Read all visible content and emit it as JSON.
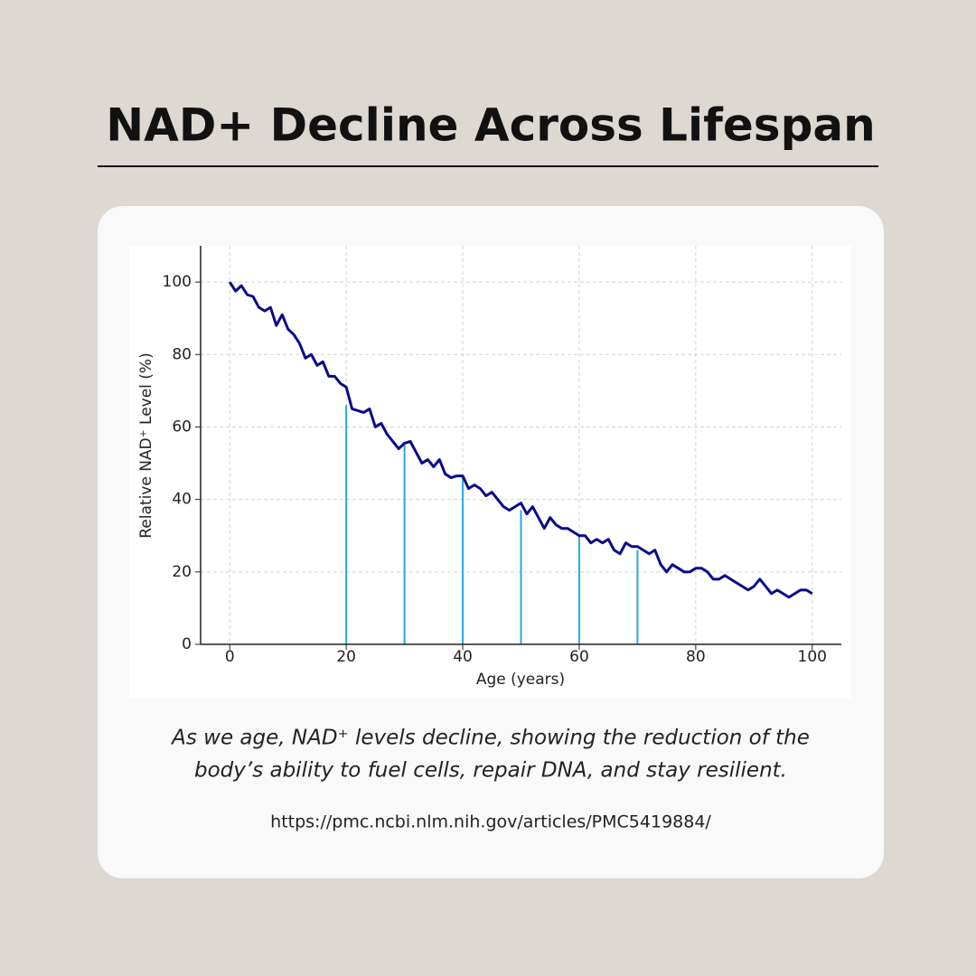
{
  "heading": "NAD+ Decline Across Lifespan",
  "caption": [
    "As we age, NAD⁺ levels decline, showing the reduction of the",
    "body’s ability to fuel cells, repair DNA, and stay resilient."
  ],
  "source": "https://pmc.ncbi.nlm.nih.gov/articles/PMC5419884/",
  "chart_data": {
    "type": "line",
    "x_label": "Age (years)",
    "y_label": "Relative NAD⁺ Level (%)",
    "x": [
      0,
      1,
      2,
      3,
      4,
      5,
      6,
      7,
      8,
      9,
      10,
      11,
      12,
      13,
      14,
      15,
      16,
      17,
      18,
      19,
      20,
      21,
      22,
      23,
      24,
      25,
      26,
      27,
      28,
      29,
      30,
      31,
      32,
      33,
      34,
      35,
      36,
      37,
      38,
      39,
      40,
      41,
      42,
      43,
      44,
      45,
      46,
      47,
      48,
      49,
      50,
      51,
      52,
      53,
      54,
      55,
      56,
      57,
      58,
      59,
      60,
      61,
      62,
      63,
      64,
      65,
      66,
      67,
      68,
      69,
      70,
      71,
      72,
      73,
      74,
      75,
      76,
      77,
      78,
      79,
      80,
      81,
      82,
      83,
      84,
      85,
      86,
      87,
      88,
      89,
      90,
      91,
      92,
      93,
      94,
      95,
      96,
      97,
      98,
      99,
      100
    ],
    "series": [
      {
        "color": "#0a0a8a",
        "values": [
          100,
          97.5,
          99,
          96.5,
          96,
          93,
          92,
          93,
          88,
          91,
          87,
          85.5,
          83,
          79,
          80,
          77,
          78,
          74,
          74,
          72,
          71,
          65,
          64.5,
          64,
          65,
          60,
          61,
          58,
          56,
          54,
          55.5,
          56,
          53,
          50,
          51,
          49,
          51,
          47,
          46,
          46.5,
          46.5,
          43,
          44,
          43,
          41,
          42,
          40,
          38,
          37,
          38,
          39,
          36,
          38,
          35,
          32,
          35,
          33,
          32,
          32,
          31,
          30,
          30,
          28,
          29,
          28,
          29,
          26,
          25,
          28,
          27,
          27,
          26,
          25,
          26,
          22,
          20,
          22,
          21,
          20,
          20,
          21,
          21,
          20,
          18,
          18,
          19,
          18,
          17,
          16,
          15,
          16,
          18,
          16,
          14,
          15,
          14,
          13,
          14,
          15,
          15,
          14
        ]
      }
    ],
    "stems": {
      "color": "#29a8e0",
      "x": [
        20,
        30,
        40,
        50,
        60,
        70
      ],
      "values": [
        66,
        55,
        46,
        37,
        30,
        26
      ]
    },
    "xlim": [
      -5,
      105
    ],
    "ylim": [
      0,
      110
    ],
    "xticks": [
      0,
      20,
      40,
      60,
      80,
      100
    ],
    "yticks": [
      0,
      20,
      40,
      60,
      80,
      100
    ],
    "grid": true
  }
}
